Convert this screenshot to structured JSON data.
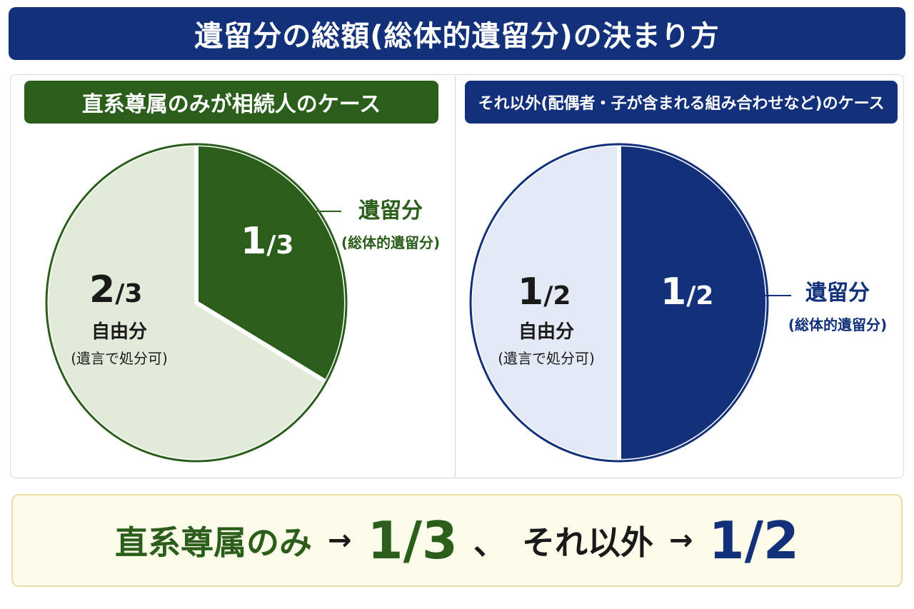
{
  "title": "遺留分の総額(総体的遺留分)の決まり方",
  "colors": {
    "navy": "#13307a",
    "green": "#2b5e1b",
    "light_green": "#e2ebda",
    "light_blue": "#e3eaf6",
    "summary_bg": "#fdfbea"
  },
  "chart_data": [
    {
      "type": "pie",
      "title": "直系尊属のみが相続人のケース",
      "slices": [
        {
          "name": "遺留分",
          "note": "(総体的遺留分)",
          "value": 1,
          "numerator": "1",
          "denominator": "3",
          "color": "#2b5e1b"
        },
        {
          "name": "自由分",
          "note": "(遺言で処分可)",
          "value": 2,
          "numerator": "2",
          "denominator": "3",
          "color": "#e2ebda"
        }
      ]
    },
    {
      "type": "pie",
      "title": "それ以外(配偶者・子が含まれる組み合わせなど)のケース",
      "slices": [
        {
          "name": "遺留分",
          "note": "(総体的遺留分)",
          "value": 1,
          "numerator": "1",
          "denominator": "2",
          "color": "#13307a"
        },
        {
          "name": "自由分",
          "note": "(遺言で処分可)",
          "value": 1,
          "numerator": "1",
          "denominator": "2",
          "color": "#e3eaf6"
        }
      ]
    }
  ],
  "summary": {
    "part1_label": "直系尊属のみ",
    "arrow": "→",
    "part1_value": "1/3",
    "separator": "、",
    "part2_label": "それ以外",
    "part2_value": "1/2"
  }
}
